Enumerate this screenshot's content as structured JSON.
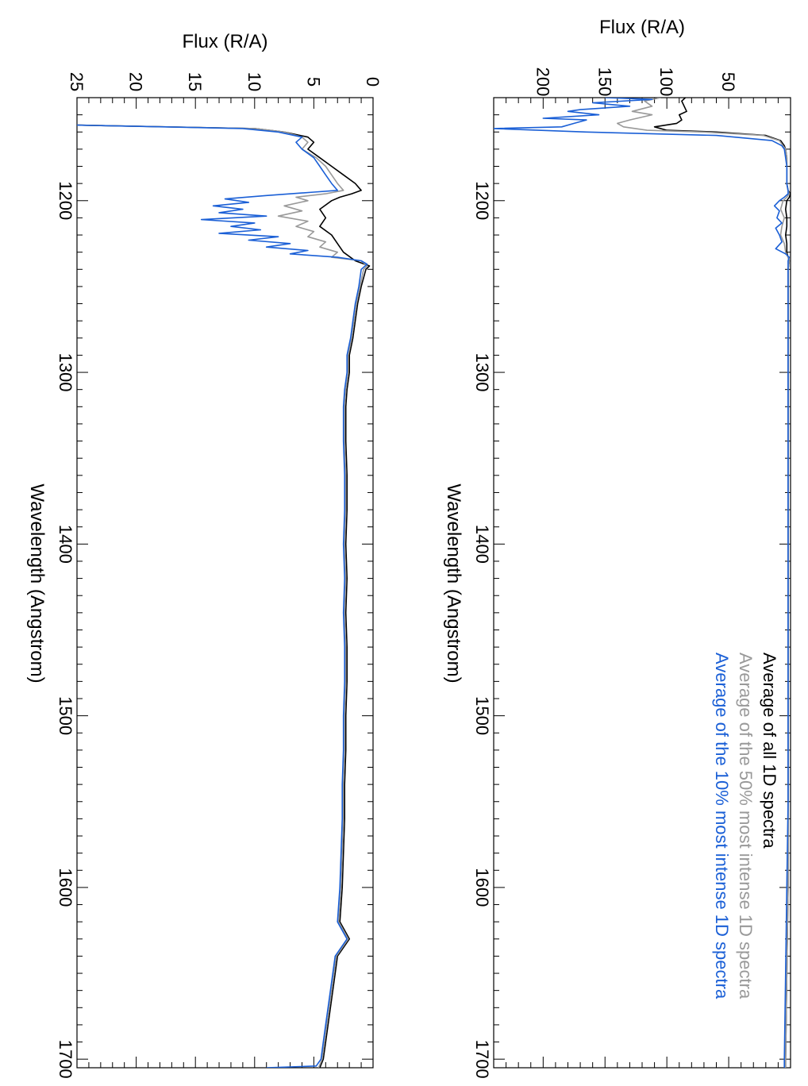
{
  "chart_data": [
    {
      "type": "line",
      "panel": "top",
      "xlabel": "Wavelength (Angstrom)",
      "ylabel": "Flux (R/A)",
      "xlim": [
        1140,
        1705
      ],
      "ylim": [
        0,
        240
      ],
      "x_ticks": [
        1200,
        1300,
        1400,
        1500,
        1600,
        1700
      ],
      "y_ticks": [
        50,
        100,
        150,
        200
      ],
      "legend_position": "top-right",
      "series": [
        {
          "name": "Average of all 1D spectra",
          "color": "#000000",
          "x": [
            1140,
            1142,
            1145,
            1148,
            1150,
            1153,
            1155,
            1157,
            1159,
            1160,
            1162,
            1165,
            1168,
            1170,
            1175,
            1180,
            1185,
            1190,
            1194,
            1196,
            1198,
            1200,
            1205,
            1210,
            1215,
            1220,
            1225,
            1230,
            1233,
            1235,
            1240,
            1260,
            1300,
            1350,
            1400,
            1450,
            1500,
            1550,
            1600,
            1650,
            1700,
            1705
          ],
          "y": [
            85,
            88,
            86,
            84,
            90,
            88,
            92,
            110,
            100,
            60,
            20,
            8,
            5,
            4,
            3,
            3,
            3,
            3,
            2,
            0,
            1,
            3,
            4,
            3,
            3,
            4,
            3,
            3,
            2,
            1,
            2,
            2,
            2,
            2,
            2,
            2,
            2,
            2,
            2,
            3,
            4,
            4
          ]
        },
        {
          "name": "Average of the 50% most intense 1D spectra",
          "color": "#999999",
          "x": [
            1140,
            1142,
            1145,
            1148,
            1150,
            1153,
            1155,
            1157,
            1159,
            1160,
            1162,
            1165,
            1168,
            1170,
            1175,
            1180,
            1185,
            1190,
            1194,
            1196,
            1198,
            1200,
            1205,
            1210,
            1215,
            1220,
            1225,
            1230,
            1233,
            1235,
            1240,
            1260,
            1300,
            1350,
            1400,
            1450,
            1500,
            1550,
            1600,
            1650,
            1700,
            1705
          ],
          "y": [
            105,
            118,
            112,
            128,
            112,
            130,
            140,
            135,
            116,
            70,
            22,
            9,
            6,
            4,
            3,
            3,
            3,
            3,
            2,
            1,
            3,
            6,
            8,
            5,
            7,
            8,
            5,
            4,
            2,
            1,
            2,
            2,
            2,
            2,
            2,
            2,
            2,
            2,
            2,
            3,
            4,
            4
          ]
        },
        {
          "name": "Average of the 10% most intense 1D spectra",
          "color": "#1a5fd6",
          "x": [
            1140,
            1141,
            1143,
            1145,
            1147,
            1148,
            1150,
            1152,
            1153,
            1155,
            1157,
            1158,
            1160,
            1162,
            1165,
            1168,
            1170,
            1175,
            1180,
            1185,
            1190,
            1194,
            1196,
            1198,
            1200,
            1203,
            1206,
            1210,
            1213,
            1216,
            1220,
            1224,
            1228,
            1231,
            1233,
            1235,
            1240,
            1260,
            1300,
            1350,
            1400,
            1450,
            1500,
            1550,
            1600,
            1650,
            1700,
            1705
          ],
          "y": [
            150,
            112,
            160,
            130,
            170,
            180,
            155,
            200,
            165,
            175,
            185,
            240,
            165,
            60,
            15,
            7,
            5,
            4,
            3,
            3,
            3,
            2,
            2,
            5,
            9,
            13,
            9,
            11,
            7,
            12,
            9,
            7,
            12,
            4,
            1,
            2,
            2,
            2,
            2,
            2,
            2,
            2,
            2,
            2,
            3,
            4,
            5,
            5
          ]
        }
      ]
    },
    {
      "type": "line",
      "panel": "bottom",
      "xlabel": "Wavelength (Angstrom)",
      "ylabel": "Flux (R/A)",
      "xlim": [
        1140,
        1705
      ],
      "ylim": [
        0,
        25
      ],
      "x_ticks": [
        1200,
        1300,
        1400,
        1500,
        1600,
        1700
      ],
      "y_ticks": [
        0,
        5,
        10,
        15,
        20,
        25
      ],
      "series": [
        {
          "name": "Average of all 1D spectra",
          "color": "#000000",
          "x": [
            1156,
            1158,
            1160,
            1163,
            1166,
            1170,
            1175,
            1180,
            1185,
            1190,
            1194,
            1196,
            1198,
            1200,
            1205,
            1210,
            1215,
            1220,
            1225,
            1230,
            1235,
            1238,
            1240,
            1250,
            1260,
            1270,
            1280,
            1290,
            1300,
            1310,
            1320,
            1340,
            1360,
            1380,
            1400,
            1420,
            1440,
            1460,
            1480,
            1500,
            1520,
            1540,
            1560,
            1580,
            1600,
            1620,
            1630,
            1640,
            1650,
            1660,
            1670,
            1680,
            1690,
            1700,
            1705
          ],
          "y": [
            25,
            10,
            7.5,
            5.5,
            5.0,
            5.5,
            4.5,
            3.5,
            2.5,
            1.5,
            1.0,
            1.8,
            2.8,
            3.5,
            4.5,
            4.0,
            4.5,
            3.5,
            3.0,
            2.5,
            1.5,
            0.3,
            0.6,
            1.0,
            1.3,
            1.5,
            1.7,
            2.0,
            2.0,
            2.2,
            2.3,
            2.3,
            2.2,
            2.2,
            2.3,
            2.2,
            2.3,
            2.2,
            2.2,
            2.3,
            2.3,
            2.4,
            2.4,
            2.5,
            2.6,
            2.8,
            2.0,
            3.0,
            3.2,
            3.4,
            3.6,
            3.8,
            4.0,
            4.2,
            4.5
          ]
        },
        {
          "name": "Average of the 50% most intense 1D spectra",
          "color": "#999999",
          "x": [
            1156,
            1158,
            1160,
            1163,
            1166,
            1170,
            1175,
            1180,
            1185,
            1190,
            1194,
            1196,
            1198,
            1200,
            1203,
            1206,
            1209,
            1212,
            1215,
            1218,
            1221,
            1224,
            1227,
            1230,
            1233,
            1235,
            1238,
            1240,
            1250,
            1260,
            1270,
            1280,
            1290,
            1300,
            1310,
            1320,
            1340,
            1360,
            1380,
            1400,
            1420,
            1440,
            1460,
            1480,
            1500,
            1520,
            1540,
            1560,
            1580,
            1600,
            1620,
            1630,
            1640,
            1650,
            1660,
            1670,
            1680,
            1690,
            1700,
            1705
          ],
          "y": [
            25,
            10,
            7.5,
            6.0,
            5.5,
            6.0,
            4.8,
            4.0,
            3.5,
            3.0,
            2.5,
            4.0,
            6.5,
            5.5,
            7.5,
            6.0,
            8.0,
            5.5,
            6.5,
            5.0,
            5.5,
            4.0,
            4.5,
            3.0,
            3.5,
            1.0,
            0.5,
            0.8,
            1.1,
            1.4,
            1.6,
            1.8,
            2.1,
            2.1,
            2.3,
            2.4,
            2.4,
            2.3,
            2.3,
            2.4,
            2.3,
            2.4,
            2.3,
            2.3,
            2.4,
            2.4,
            2.5,
            2.5,
            2.6,
            2.7,
            2.9,
            2.1,
            3.1,
            3.3,
            3.5,
            3.7,
            3.9,
            4.1,
            4.3,
            4.6
          ]
        },
        {
          "name": "Average of the 10% most intense 1D spectra",
          "color": "#1a5fd6",
          "x": [
            1156,
            1158,
            1160,
            1163,
            1166,
            1170,
            1175,
            1180,
            1185,
            1190,
            1194,
            1195,
            1197,
            1199,
            1201,
            1203,
            1205,
            1207,
            1209,
            1211,
            1213,
            1215,
            1217,
            1219,
            1221,
            1223,
            1225,
            1227,
            1229,
            1231,
            1233,
            1235,
            1237,
            1240,
            1250,
            1260,
            1270,
            1280,
            1290,
            1300,
            1310,
            1320,
            1340,
            1360,
            1380,
            1400,
            1420,
            1440,
            1460,
            1480,
            1500,
            1520,
            1540,
            1560,
            1580,
            1600,
            1620,
            1630,
            1640,
            1650,
            1660,
            1670,
            1680,
            1690,
            1700,
            1704,
            1705
          ],
          "y": [
            25,
            11,
            8.0,
            6.0,
            6.5,
            6.0,
            5.0,
            4.5,
            4.0,
            3.5,
            3.0,
            5.0,
            9.0,
            12.5,
            10.5,
            13.5,
            11.0,
            13.0,
            9.0,
            14.5,
            10.0,
            12.0,
            9.5,
            13.0,
            8.0,
            10.5,
            7.0,
            9.0,
            5.5,
            7.0,
            3.0,
            1.0,
            0.5,
            1.0,
            1.2,
            1.5,
            1.7,
            1.9,
            2.2,
            2.2,
            2.4,
            2.5,
            2.5,
            2.4,
            2.4,
            2.5,
            2.4,
            2.5,
            2.4,
            2.4,
            2.5,
            2.5,
            2.6,
            2.6,
            2.7,
            2.8,
            3.0,
            2.2,
            3.2,
            3.4,
            3.6,
            3.8,
            4.0,
            4.2,
            4.4,
            4.8,
            9.0
          ]
        }
      ]
    }
  ]
}
